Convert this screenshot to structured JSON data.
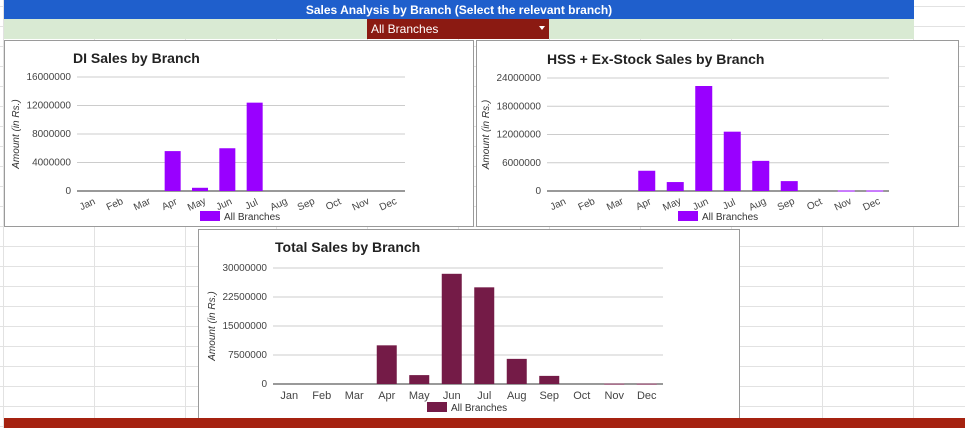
{
  "header": {
    "title": "Sales Analysis by Branch (Select the relevant branch)",
    "branch_select_value": "All Branches"
  },
  "colors": {
    "header_bg": "#1f5fcc",
    "filter_bg": "#d9ead3",
    "select_bg": "#8b1a12",
    "purple_series": "#9900ff",
    "maroon_series": "#741b47",
    "bottom_bar": "#a52210"
  },
  "chart_data": [
    {
      "id": "di",
      "type": "bar",
      "title": "DI Sales by Branch",
      "xlabel": "",
      "ylabel": "Amount (in Rs.)",
      "categories": [
        "Jan",
        "Feb",
        "Mar",
        "Apr",
        "May",
        "Jun",
        "Jul",
        "Aug",
        "Sep",
        "Oct",
        "Nov",
        "Dec"
      ],
      "series": [
        {
          "name": "All Branches",
          "color": "#9900ff",
          "values": [
            0,
            0,
            0,
            5600000,
            450000,
            6000000,
            12400000,
            0,
            0,
            0,
            0,
            0
          ]
        }
      ],
      "ylim": [
        0,
        16000000
      ],
      "yticks": [
        0,
        4000000,
        8000000,
        12000000,
        16000000
      ],
      "ytick_labels": [
        "0",
        "4000000",
        "8000000",
        "12000000",
        "16000000"
      ],
      "grid": true,
      "legend": "bottom",
      "x_label_rotation": "slanted"
    },
    {
      "id": "hss",
      "type": "bar",
      "title": "HSS + Ex-Stock Sales by Branch",
      "xlabel": "",
      "ylabel": "Amount (in Rs.)",
      "categories": [
        "Jan",
        "Feb",
        "Mar",
        "Apr",
        "May",
        "Jun",
        "Jul",
        "Aug",
        "Sep",
        "Oct",
        "Nov",
        "Dec"
      ],
      "series": [
        {
          "name": "All Branches",
          "color": "#9900ff",
          "values": [
            0,
            0,
            0,
            4300000,
            1900000,
            22300000,
            12600000,
            6400000,
            2100000,
            0,
            100000,
            100000
          ]
        }
      ],
      "ylim": [
        0,
        24000000
      ],
      "yticks": [
        0,
        6000000,
        12000000,
        18000000,
        24000000
      ],
      "ytick_labels": [
        "0",
        "6000000",
        "12000000",
        "18000000",
        "24000000"
      ],
      "grid": true,
      "legend": "bottom",
      "x_label_rotation": "slanted"
    },
    {
      "id": "total",
      "type": "bar",
      "title": "Total Sales by Branch",
      "xlabel": "",
      "ylabel": "Amount (in Rs.)",
      "categories": [
        "Jan",
        "Feb",
        "Mar",
        "Apr",
        "May",
        "Jun",
        "Jul",
        "Aug",
        "Sep",
        "Oct",
        "Nov",
        "Dec"
      ],
      "series": [
        {
          "name": "All Branches",
          "color": "#741b47",
          "values": [
            0,
            0,
            0,
            10000000,
            2300000,
            28500000,
            25000000,
            6500000,
            2100000,
            0,
            100000,
            100000
          ]
        }
      ],
      "ylim": [
        0,
        30000000
      ],
      "yticks": [
        0,
        7500000,
        15000000,
        22500000,
        30000000
      ],
      "ytick_labels": [
        "0",
        "7500000",
        "15000000",
        "22500000",
        "30000000"
      ],
      "grid": true,
      "legend": "bottom",
      "x_label_rotation": "horizontal"
    }
  ]
}
